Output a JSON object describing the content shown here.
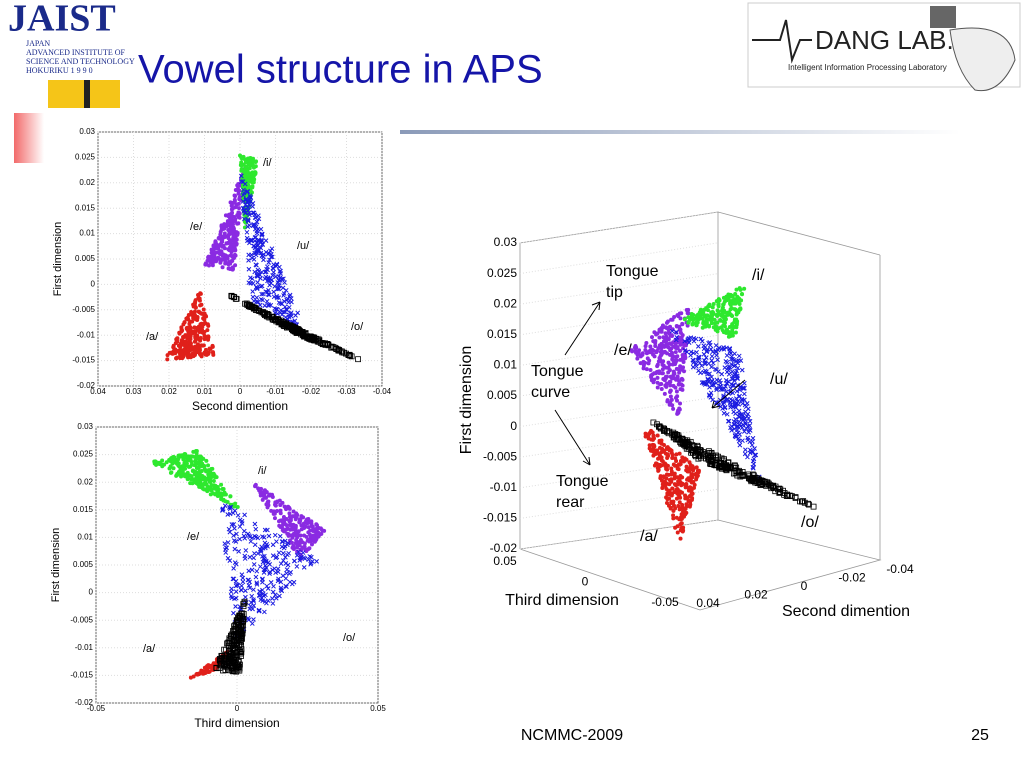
{
  "header": {
    "title": "Vowel structure in APS",
    "logo_left": {
      "name": "JAIST",
      "lines": [
        "JAPAN",
        "ADVANCED  INSTITUTE  OF",
        "SCIENCE AND TECHNOLOGY",
        "HOKURIKU   1 9 9 0"
      ]
    },
    "logo_right": {
      "name": "DANG LAB.",
      "subtitle": "Intelligent Information Processing Laboratory"
    }
  },
  "figures": [
    {
      "x_label": "Second dimention",
      "y_label": "First dimension",
      "xticks": [
        "0.04",
        "0.03",
        "0.02",
        "0.01",
        "0",
        "-0.01",
        "-0.02",
        "-0.03",
        "-0.04"
      ],
      "yticks": [
        "0.03",
        "0.025",
        "0.02",
        "0.015",
        "0.01",
        "0.005",
        "0",
        "-0.005",
        "-0.01",
        "-0.015",
        "-0.02"
      ],
      "labels": [
        "/i/",
        "/e/",
        "/u/",
        "/o/",
        "/a/"
      ]
    },
    {
      "x_label": "Third dimension",
      "y_label": "First dimension",
      "xticks": [
        "-0.05",
        "0",
        "0.05"
      ],
      "yticks": [
        "0.03",
        "0.025",
        "0.02",
        "0.015",
        "0.01",
        "0.005",
        "0",
        "-0.005",
        "-0.01",
        "-0.015",
        "-0.02"
      ],
      "labels": [
        "/i/",
        "/e/",
        "/o/",
        "/a/"
      ]
    },
    {
      "x_label": "Second dimention",
      "y_label": "First dimension",
      "z_label": "Third dimension",
      "xticks": [
        "0.04",
        "0.02",
        "0",
        "-0.02",
        "-0.04"
      ],
      "yticks": [
        "0.03",
        "0.025",
        "0.02",
        "0.015",
        "0.01",
        "0.005",
        "0",
        "-0.005",
        "-0.01",
        "-0.015",
        "-0.02"
      ],
      "zticks": [
        "0.05",
        "0",
        "-0.05"
      ],
      "labels": [
        "/i/",
        "/e/",
        "/u/",
        "/a/",
        "/o/"
      ],
      "annotations": [
        [
          "Tongue",
          "tip"
        ],
        [
          "Tongue",
          "curve"
        ],
        [
          "Tongue",
          "rear"
        ]
      ]
    }
  ],
  "footer": {
    "center": "NCMMC-2009",
    "page": "25"
  }
}
